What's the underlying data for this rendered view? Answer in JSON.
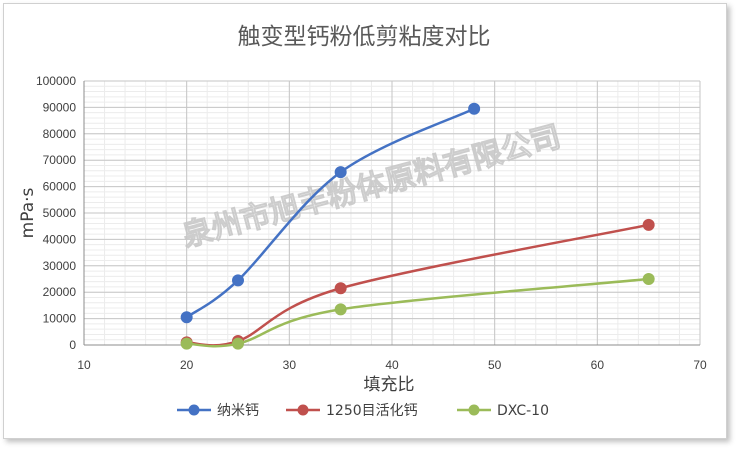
{
  "chart_data": {
    "type": "scatter",
    "title": "触变型钙粉低剪粘度对比",
    "xlabel": "填充比",
    "ylabel": "mPa·s",
    "xlim": [
      10,
      70
    ],
    "ylim": [
      0,
      100000
    ],
    "x_ticks": [
      "10",
      "20",
      "30",
      "40",
      "50",
      "60",
      "70"
    ],
    "y_ticks": [
      "0",
      "10000",
      "20000",
      "30000",
      "40000",
      "50000",
      "60000",
      "70000",
      "80000",
      "90000",
      "100000"
    ],
    "grid": true,
    "legend_position": "bottom",
    "series": [
      {
        "name": "纳米钙",
        "color": "#4472c4",
        "x": [
          20,
          25,
          35,
          48
        ],
        "y": [
          10500,
          24500,
          65500,
          89500
        ]
      },
      {
        "name": "1250目活化钙",
        "color": "#c0504d",
        "x": [
          20,
          25,
          35,
          65
        ],
        "y": [
          1000,
          1500,
          21500,
          45500
        ]
      },
      {
        "name": "DXC-10",
        "color": "#9bbb59",
        "x": [
          20,
          25,
          35,
          65
        ],
        "y": [
          500,
          500,
          13500,
          25000
        ]
      }
    ]
  },
  "watermark": "泉州市旭丰粉体原料有限公司"
}
